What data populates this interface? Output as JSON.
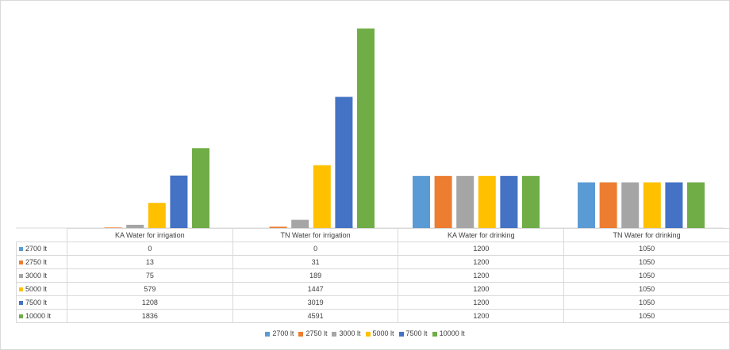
{
  "chart_data": {
    "type": "bar",
    "categories": [
      "KA Water for irrigation",
      "TN Water for irrigation",
      "KA Water for drinking",
      "TN Water for drinking"
    ],
    "series": [
      {
        "name": "2700 lt",
        "color": "#5b9bd5",
        "values": [
          0,
          0,
          1200,
          1050
        ]
      },
      {
        "name": "2750 lt",
        "color": "#ed7d31",
        "values": [
          13,
          31,
          1200,
          1050
        ]
      },
      {
        "name": "3000 lt",
        "color": "#a5a5a5",
        "values": [
          75,
          189,
          1200,
          1050
        ]
      },
      {
        "name": "5000 lt",
        "color": "#ffc000",
        "values": [
          579,
          1447,
          1200,
          1050
        ]
      },
      {
        "name": "7500 lt",
        "color": "#4472c4",
        "values": [
          1208,
          3019,
          1200,
          1050
        ]
      },
      {
        "name": "10000 lt",
        "color": "#70ad47",
        "values": [
          1836,
          4591,
          1200,
          1050
        ]
      }
    ],
    "ylim": [
      0,
      5000
    ],
    "grid": false,
    "data_table": true,
    "legend": "bottom"
  }
}
